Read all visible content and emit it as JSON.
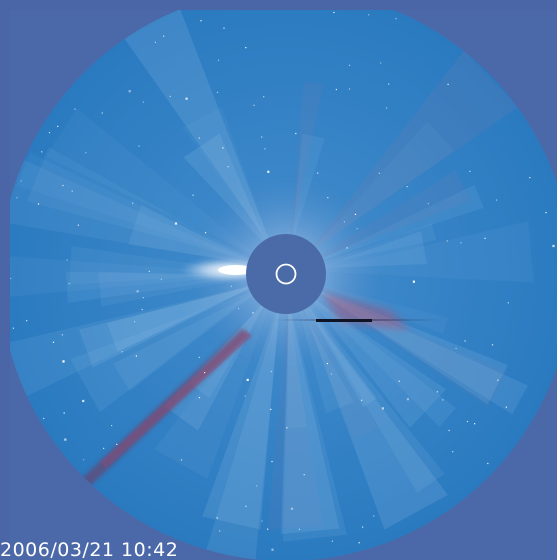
{
  "observation": {
    "timestamp": "2006/03/21  10:42"
  },
  "colors": {
    "background": "#4b68a8",
    "field": "#2f80c8",
    "occulter": "#4a6aa8",
    "sun_ring": "#ffffff",
    "streamer_red": "#a05a80",
    "comet_trail": "#6a3050"
  },
  "icons": {
    "sun": "sun-circle-icon",
    "pylon": "occulter-pylon-icon"
  }
}
